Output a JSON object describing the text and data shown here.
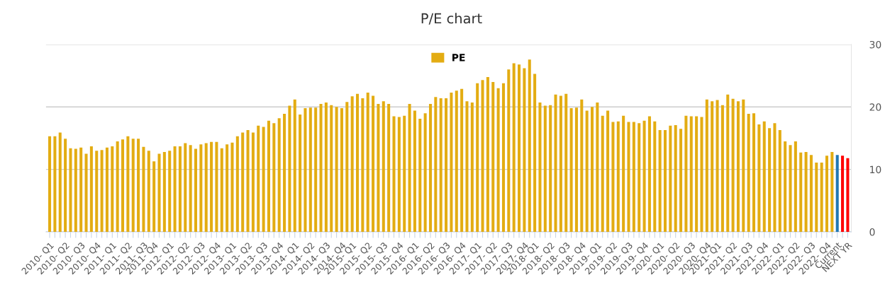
{
  "chart_data": {
    "type": "bar",
    "title": "P/E chart",
    "categories": [
      "2010- Q1",
      null,
      null,
      "2010- Q2",
      null,
      null,
      "2010- Q3",
      null,
      null,
      "2010- Q4",
      null,
      null,
      "2011- Q1",
      null,
      null,
      "2011- Q2",
      null,
      null,
      "2011- Q3",
      null,
      "2011- Q4",
      null,
      null,
      "2012- Q1",
      null,
      null,
      "2012- Q2",
      null,
      null,
      "2012- Q3",
      null,
      null,
      "2012- Q4",
      null,
      null,
      "2013- Q1",
      null,
      null,
      "2013- Q2",
      null,
      null,
      "2013- Q3",
      null,
      null,
      "2013- Q4",
      null,
      null,
      "2014- Q1",
      null,
      null,
      "2014- Q2",
      null,
      null,
      "2014- Q3",
      null,
      null,
      "2014- Q4",
      null,
      "2015- Q1",
      null,
      null,
      "2015- Q2",
      null,
      null,
      "2015- Q3",
      null,
      null,
      "2015- Q4",
      null,
      null,
      "2016- Q1",
      null,
      null,
      "2016- Q2",
      null,
      null,
      "2016- Q3",
      null,
      null,
      "2016- Q4",
      null,
      null,
      "2017- Q1",
      null,
      null,
      "2017- Q2",
      null,
      null,
      "2017- Q3",
      null,
      null,
      "2017- Q4",
      null,
      "2018- Q1",
      null,
      null,
      "2018- Q2",
      null,
      null,
      "2018- Q3",
      null,
      null,
      "2018- Q4",
      null,
      null,
      "2019- Q1",
      null,
      null,
      "2019- Q2",
      null,
      null,
      "2019- Q3",
      null,
      null,
      "2019- Q4",
      null,
      null,
      "2020- Q1",
      null,
      null,
      "2020- Q2",
      null,
      null,
      "2020- Q3",
      null,
      null,
      "2020- Q4",
      null,
      "2021- Q1",
      null,
      null,
      "2021- Q2",
      null,
      null,
      "2021- Q3",
      null,
      null,
      "2021- Q4",
      null,
      null,
      "2022- Q1",
      null,
      null,
      "2022- Q2",
      null,
      null,
      "2022- Q3",
      null,
      null,
      "2022- Q4",
      null,
      "Current",
      null,
      "NEXT YR"
    ],
    "series": [
      {
        "name": "PE",
        "color": "#e3ac12",
        "values": [
          15.3,
          15.3,
          15.9,
          14.9,
          13.4,
          13.3,
          13.5,
          12.5,
          13.7,
          13.0,
          13.1,
          13.5,
          13.7,
          14.5,
          14.8,
          15.3,
          14.9,
          14.9,
          13.6,
          13.0,
          11.3,
          12.5,
          12.8,
          13.0,
          13.7,
          13.7,
          14.2,
          13.9,
          13.3,
          14.0,
          14.2,
          14.4,
          14.4,
          13.4,
          14.0,
          14.3,
          15.3,
          15.9,
          16.3,
          15.9,
          17.0,
          16.8,
          17.8,
          17.4,
          18.2,
          18.9,
          20.2,
          21.2,
          18.8,
          19.8,
          19.9,
          19.9,
          20.5,
          20.7,
          20.3,
          20.0,
          19.8,
          20.8,
          21.7,
          22.1,
          21.4,
          22.3,
          21.8,
          20.5,
          20.9,
          20.5,
          18.5,
          18.4,
          18.6,
          20.5,
          19.4,
          18.1,
          19.0,
          20.5,
          21.6,
          21.4,
          21.4,
          22.3,
          22.6,
          22.9,
          20.9,
          20.7,
          23.8,
          24.3,
          24.8,
          24.0,
          23.0,
          23.8,
          26.0,
          27.0,
          26.8,
          26.2,
          27.6,
          25.3,
          20.7,
          20.2,
          20.3,
          22.0,
          21.8,
          22.1,
          19.8,
          19.9,
          21.2,
          19.4,
          20.0,
          20.7,
          18.6,
          19.4,
          17.6,
          17.7,
          18.6,
          17.6,
          17.6,
          17.4,
          17.8,
          18.5,
          17.7,
          16.3,
          16.3,
          17.0,
          17.1,
          16.5,
          18.6,
          18.5,
          18.5,
          18.4,
          21.2,
          20.9,
          21.1,
          20.3,
          22.0,
          21.3,
          20.9,
          21.2,
          18.9,
          19.0,
          17.2,
          17.7,
          16.6,
          17.4,
          16.3,
          14.5,
          13.9,
          14.5,
          12.7,
          12.8,
          12.3,
          11.1,
          11.1,
          12.2,
          12.8,
          12.3,
          12.2,
          11.8
        ],
        "colors": [
          "#e3ac12",
          "#e3ac12",
          "#e3ac12",
          "#e3ac12",
          "#e3ac12",
          "#e3ac12",
          "#e3ac12",
          "#e3ac12",
          "#e3ac12",
          "#e3ac12",
          "#e3ac12",
          "#e3ac12",
          "#e3ac12",
          "#e3ac12",
          "#e3ac12",
          "#e3ac12",
          "#e3ac12",
          "#e3ac12",
          "#e3ac12",
          "#e3ac12",
          "#e3ac12",
          "#e3ac12",
          "#e3ac12",
          "#e3ac12",
          "#e3ac12",
          "#e3ac12",
          "#e3ac12",
          "#e3ac12",
          "#e3ac12",
          "#e3ac12",
          "#e3ac12",
          "#e3ac12",
          "#e3ac12",
          "#e3ac12",
          "#e3ac12",
          "#e3ac12",
          "#e3ac12",
          "#e3ac12",
          "#e3ac12",
          "#e3ac12",
          "#e3ac12",
          "#e3ac12",
          "#e3ac12",
          "#e3ac12",
          "#e3ac12",
          "#e3ac12",
          "#e3ac12",
          "#e3ac12",
          "#e3ac12",
          "#e3ac12",
          "#e3ac12",
          "#e3ac12",
          "#e3ac12",
          "#e3ac12",
          "#e3ac12",
          "#e3ac12",
          "#e3ac12",
          "#e3ac12",
          "#e3ac12",
          "#e3ac12",
          "#e3ac12",
          "#e3ac12",
          "#e3ac12",
          "#e3ac12",
          "#e3ac12",
          "#e3ac12",
          "#e3ac12",
          "#e3ac12",
          "#e3ac12",
          "#e3ac12",
          "#e3ac12",
          "#e3ac12",
          "#e3ac12",
          "#e3ac12",
          "#e3ac12",
          "#e3ac12",
          "#e3ac12",
          "#e3ac12",
          "#e3ac12",
          "#e3ac12",
          "#e3ac12",
          "#e3ac12",
          "#e3ac12",
          "#e3ac12",
          "#e3ac12",
          "#e3ac12",
          "#e3ac12",
          "#e3ac12",
          "#e3ac12",
          "#e3ac12",
          "#e3ac12",
          "#e3ac12",
          "#e3ac12",
          "#e3ac12",
          "#e3ac12",
          "#e3ac12",
          "#e3ac12",
          "#e3ac12",
          "#e3ac12",
          "#e3ac12",
          "#e3ac12",
          "#e3ac12",
          "#e3ac12",
          "#e3ac12",
          "#e3ac12",
          "#e3ac12",
          "#e3ac12",
          "#e3ac12",
          "#e3ac12",
          "#e3ac12",
          "#e3ac12",
          "#e3ac12",
          "#e3ac12",
          "#e3ac12",
          "#e3ac12",
          "#e3ac12",
          "#e3ac12",
          "#e3ac12",
          "#e3ac12",
          "#e3ac12",
          "#e3ac12",
          "#e3ac12",
          "#e3ac12",
          "#e3ac12",
          "#e3ac12",
          "#e3ac12",
          "#e3ac12",
          "#e3ac12",
          "#e3ac12",
          "#e3ac12",
          "#e3ac12",
          "#e3ac12",
          "#e3ac12",
          "#e3ac12",
          "#e3ac12",
          "#e3ac12",
          "#e3ac12",
          "#e3ac12",
          "#e3ac12",
          "#e3ac12",
          "#e3ac12",
          "#e3ac12",
          "#e3ac12",
          "#e3ac12",
          "#e3ac12",
          "#e3ac12",
          "#e3ac12",
          "#e3ac12",
          "#e3ac12",
          "#e3ac12",
          "#e3ac12",
          "#1f77b4",
          "#ff0000",
          "#ff0000"
        ]
      }
    ],
    "ylim": [
      0,
      30
    ],
    "yticks": [
      0,
      10,
      20,
      30
    ],
    "grid": "y",
    "legend": "top"
  }
}
